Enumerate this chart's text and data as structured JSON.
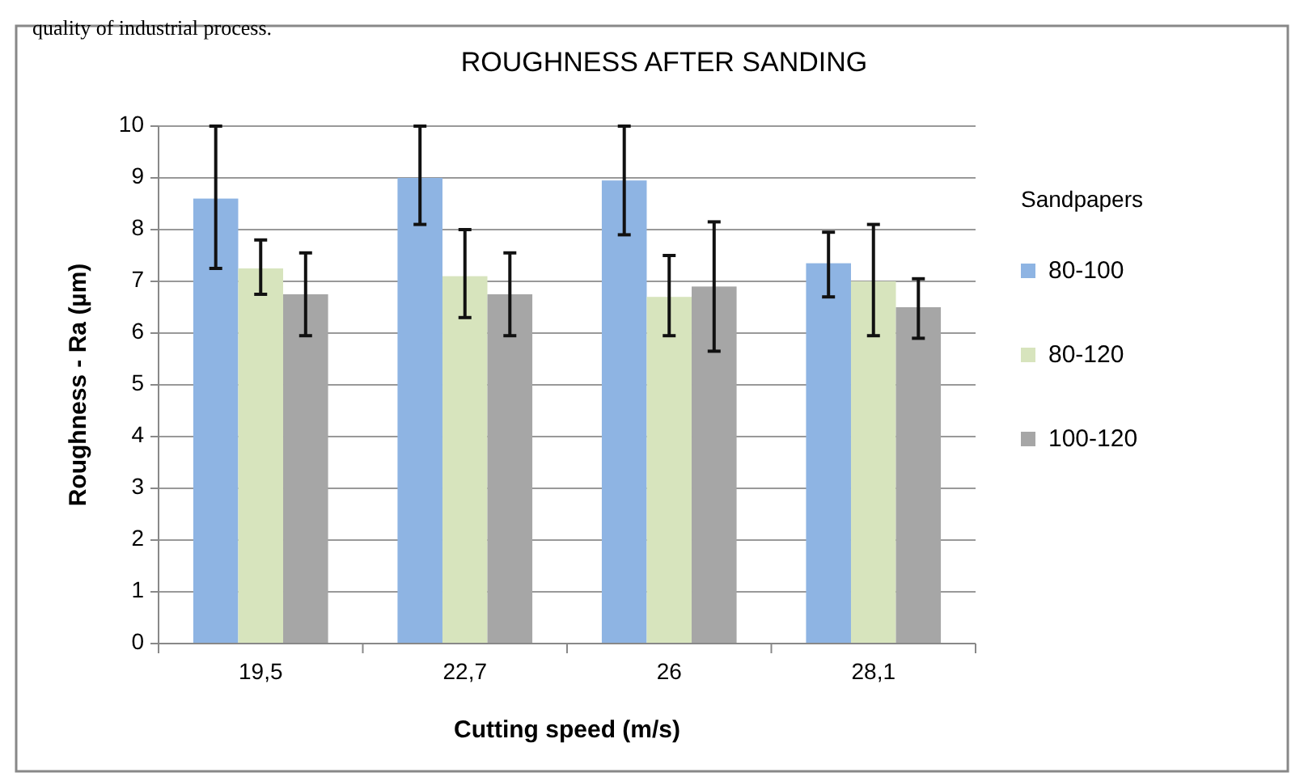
{
  "chart_data": {
    "type": "bar",
    "title": "ROUGHNESS AFTER SANDING",
    "xlabel": "Cutting speed (m/s)",
    "ylabel": "Roughness - Ra (µm)",
    "legend_title": "Sandpapers",
    "annotations": [
      "quality of industrial process."
    ],
    "categories": [
      "19,5",
      "22,7",
      "26",
      "28,1"
    ],
    "series": [
      {
        "name": "80-100",
        "color": "#8eb4e3",
        "values": [
          8.6,
          9.0,
          8.95,
          7.35
        ],
        "errors": [
          [
            7.25,
            10
          ],
          [
            8.1,
            10
          ],
          [
            7.9,
            10
          ],
          [
            6.7,
            7.95
          ]
        ]
      },
      {
        "name": "80-120",
        "color": "#d7e4bd",
        "values": [
          7.25,
          7.1,
          6.7,
          7.0
        ],
        "errors": [
          [
            6.75,
            7.8
          ],
          [
            6.3,
            8.0
          ],
          [
            5.95,
            7.5
          ],
          [
            5.95,
            8.1
          ]
        ]
      },
      {
        "name": "100-120",
        "color": "#a6a6a6",
        "values": [
          6.75,
          6.75,
          6.9,
          6.5
        ],
        "errors": [
          [
            5.95,
            7.55
          ],
          [
            5.95,
            7.55
          ],
          [
            5.65,
            8.15
          ],
          [
            5.9,
            7.05
          ]
        ]
      }
    ],
    "ylim": [
      0,
      10
    ],
    "yticks": [
      0,
      1,
      2,
      3,
      4,
      5,
      6,
      7,
      8,
      9,
      10
    ],
    "grid": "y",
    "legend": "right"
  }
}
